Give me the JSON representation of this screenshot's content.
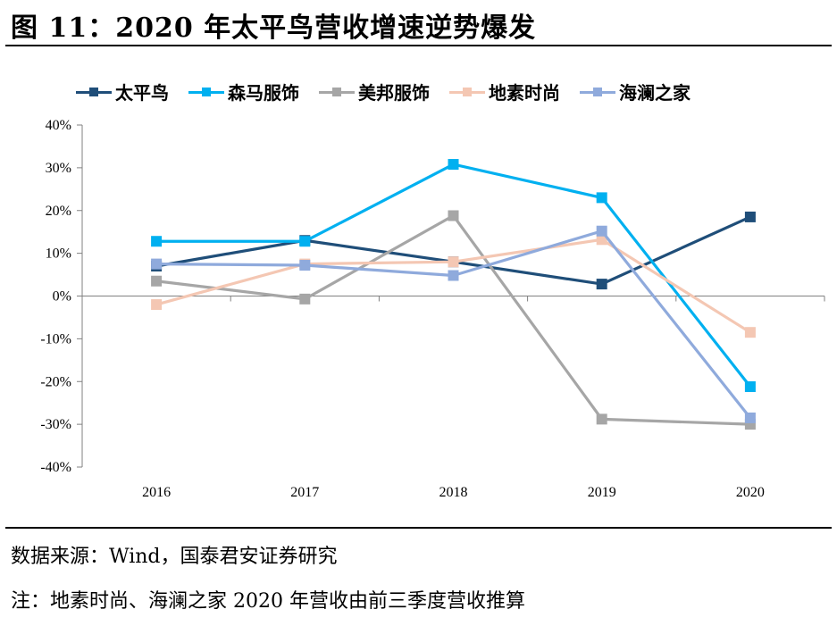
{
  "title": "图 11：2020 年太平鸟营收增速逆势爆发",
  "source_note": "数据来源：Wind，国泰君安证券研究",
  "remark_note": "注：地素时尚、海澜之家 2020 年营收由前三季度营收推算",
  "chart_data": {
    "type": "line",
    "categories": [
      "2016",
      "2017",
      "2018",
      "2019",
      "2020"
    ],
    "y_ticks": [
      "40%",
      "30%",
      "20%",
      "10%",
      "0%",
      "-10%",
      "-20%",
      "-30%",
      "-40%"
    ],
    "ylim": [
      -40,
      40
    ],
    "y_unit": "%",
    "legend_position": "top",
    "grid": false,
    "series": [
      {
        "name": "太平鸟",
        "color": "#1f4e79",
        "values": [
          7.0,
          13.0,
          8.0,
          2.8,
          18.5
        ]
      },
      {
        "name": "森马服饰",
        "color": "#00b0f0",
        "values": [
          12.8,
          12.8,
          30.8,
          23.0,
          -21.2
        ]
      },
      {
        "name": "美邦服饰",
        "color": "#a6a6a6",
        "values": [
          3.5,
          -0.7,
          18.8,
          -28.8,
          -30.0
        ]
      },
      {
        "name": "地素时尚",
        "color": "#f4c7b3",
        "values": [
          -2.0,
          7.5,
          8.0,
          13.2,
          -8.5
        ]
      },
      {
        "name": "海澜之家",
        "color": "#8faadc",
        "values": [
          7.5,
          7.2,
          4.8,
          15.2,
          -28.5
        ]
      }
    ]
  }
}
